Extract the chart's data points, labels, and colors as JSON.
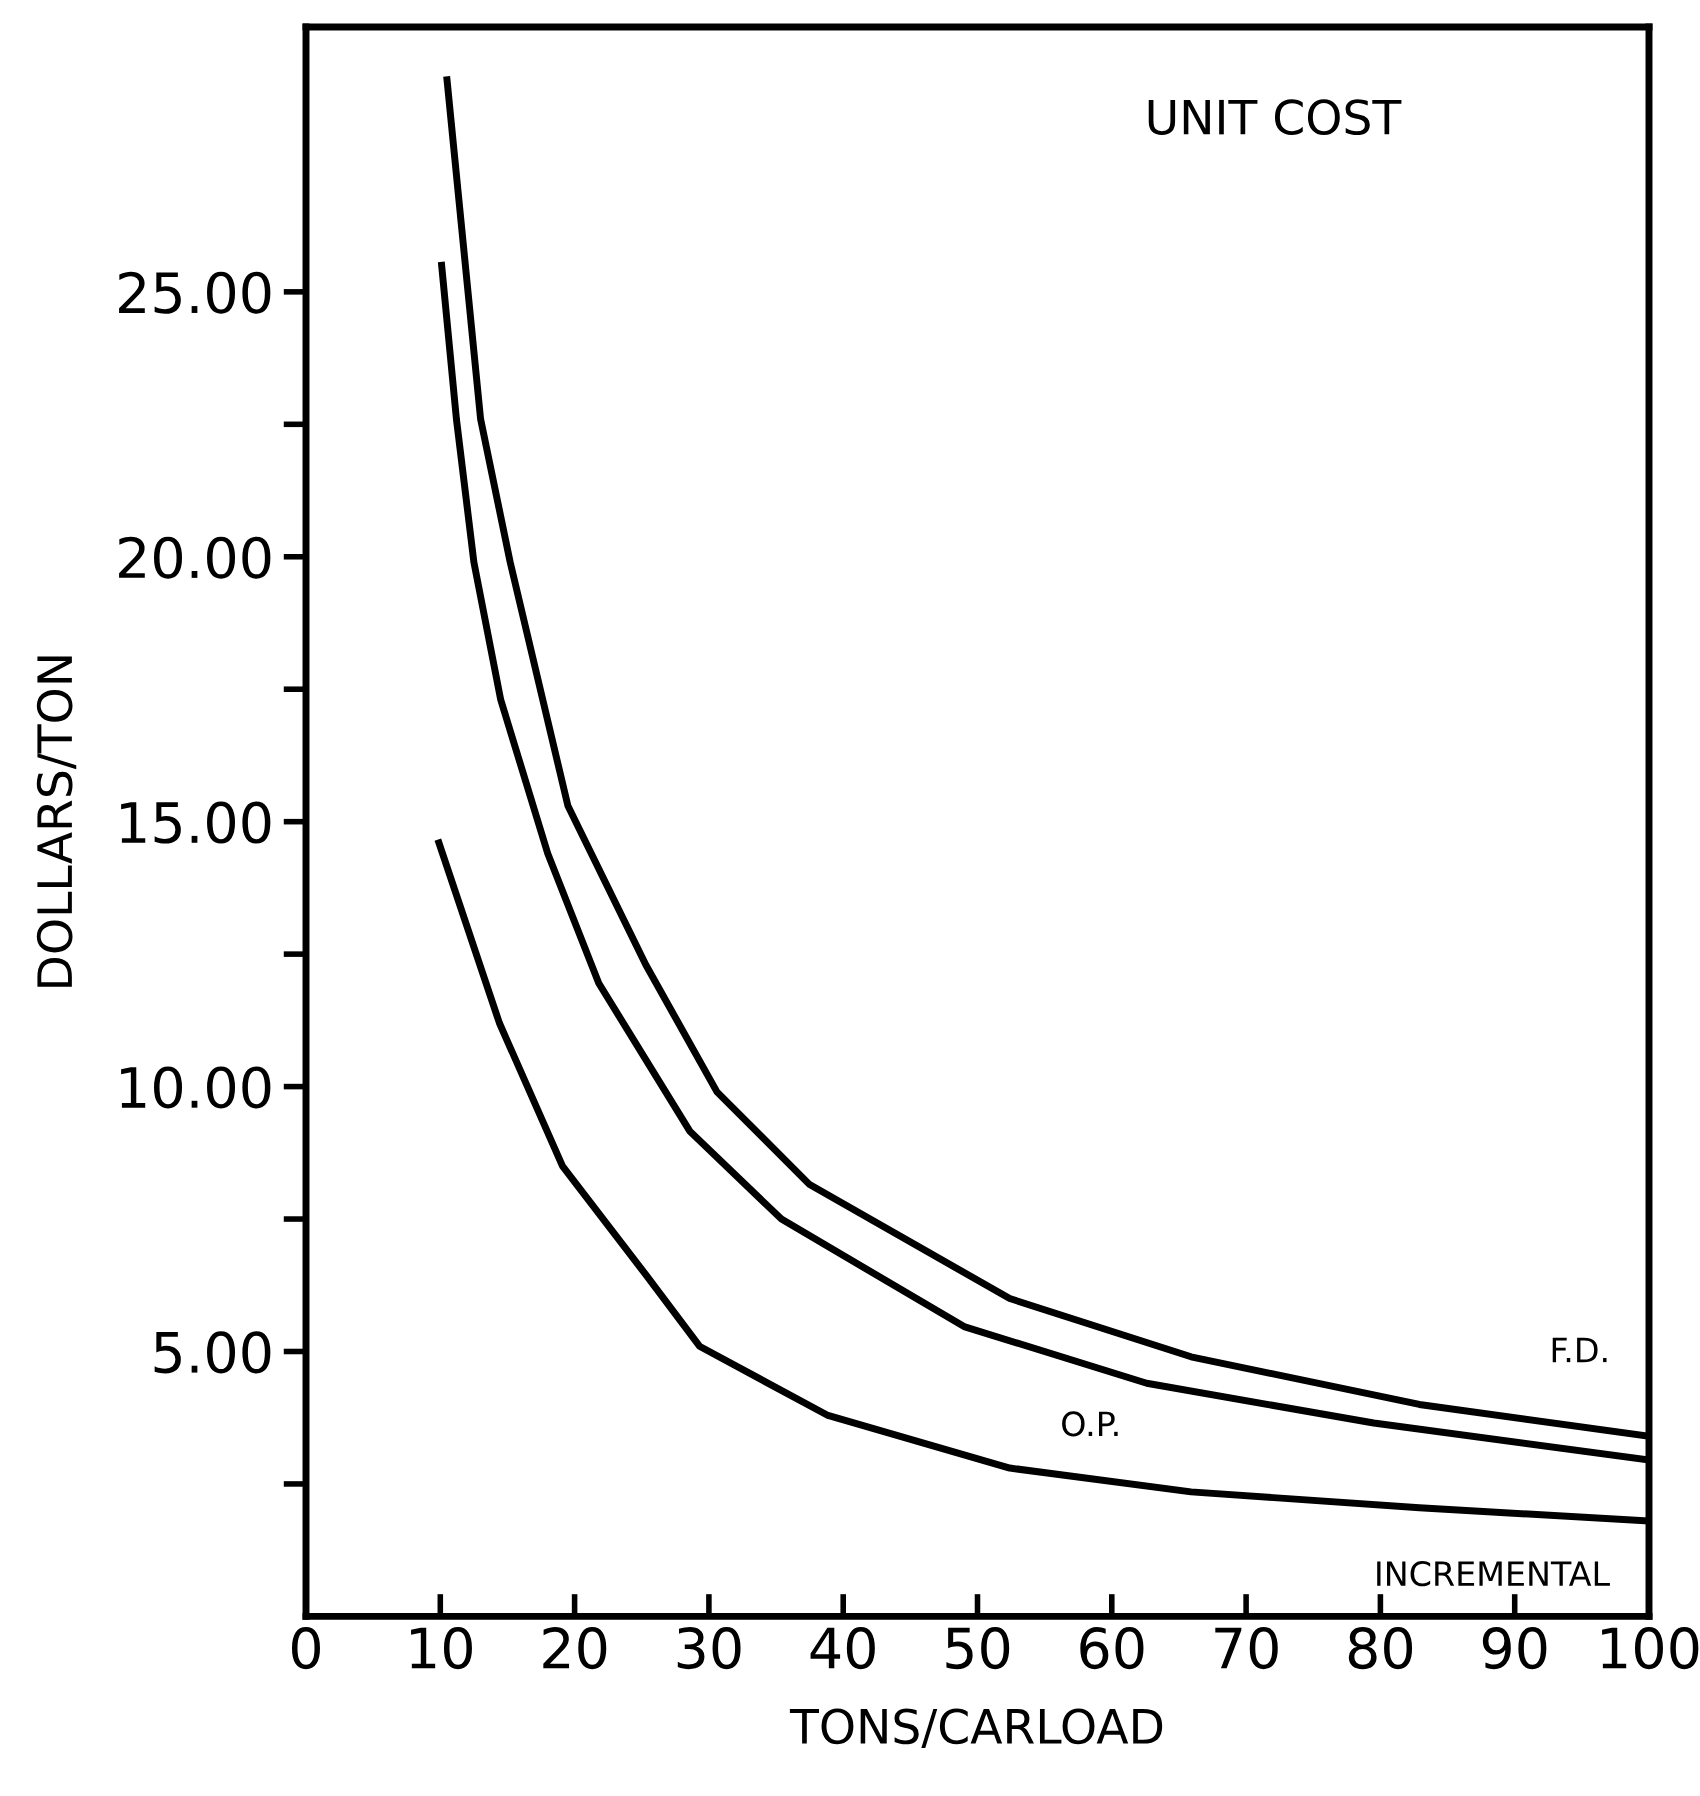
{
  "chart_data": {
    "type": "line",
    "title": "UNIT COST",
    "xlabel": "TONS/CARLOAD",
    "ylabel": "DOLLARS/TON",
    "xlim": [
      0,
      100
    ],
    "xticks": [
      0,
      10,
      20,
      30,
      40,
      50,
      60,
      70,
      80,
      90,
      100
    ],
    "ylim": [
      0,
      30
    ],
    "yticks": [
      {
        "value": 2.5,
        "label": null
      },
      {
        "value": 5,
        "label": "5.00"
      },
      {
        "value": 7.5,
        "label": null
      },
      {
        "value": 10,
        "label": "10.00"
      },
      {
        "value": 12.5,
        "label": null
      },
      {
        "value": 15,
        "label": "15.00"
      },
      {
        "value": 17.5,
        "label": null
      },
      {
        "value": 20,
        "label": "20.00"
      },
      {
        "value": 22.5,
        "label": null
      },
      {
        "value": 25,
        "label": "25.00"
      }
    ],
    "grid": false,
    "legend": false,
    "marker": "none",
    "line_style": "solid",
    "series": [
      {
        "name": "F.D.",
        "color": "#000000",
        "x": [
          10.5,
          13,
          15.2,
          19.5,
          25.3,
          30.6,
          37.5,
          52.4,
          65.9,
          82.9,
          100
        ],
        "values": [
          29.0,
          22.6,
          19.9,
          15.3,
          12.3,
          9.9,
          8.15,
          6.0,
          4.9,
          4.0,
          3.4
        ]
      },
      {
        "name": "O.P.",
        "color": "#000000",
        "x": [
          10.1,
          11.2,
          12.5,
          14.5,
          18,
          21.8,
          28.6,
          35.4,
          49,
          62.6,
          79.5,
          100
        ],
        "values": [
          25.5,
          22.6,
          19.9,
          17.3,
          14.4,
          11.95,
          9.15,
          7.5,
          5.47,
          4.4,
          3.65,
          2.95
        ]
      },
      {
        "name": "INCREMENTAL",
        "color": "#000000",
        "x": [
          9.9,
          14.4,
          19.1,
          25.3,
          29.3,
          38.8,
          52.4,
          65.9,
          82.9,
          100
        ],
        "values": [
          14.6,
          11.2,
          8.5,
          6.45,
          5.1,
          3.8,
          2.8,
          2.35,
          2.05,
          1.8
        ]
      }
    ]
  }
}
